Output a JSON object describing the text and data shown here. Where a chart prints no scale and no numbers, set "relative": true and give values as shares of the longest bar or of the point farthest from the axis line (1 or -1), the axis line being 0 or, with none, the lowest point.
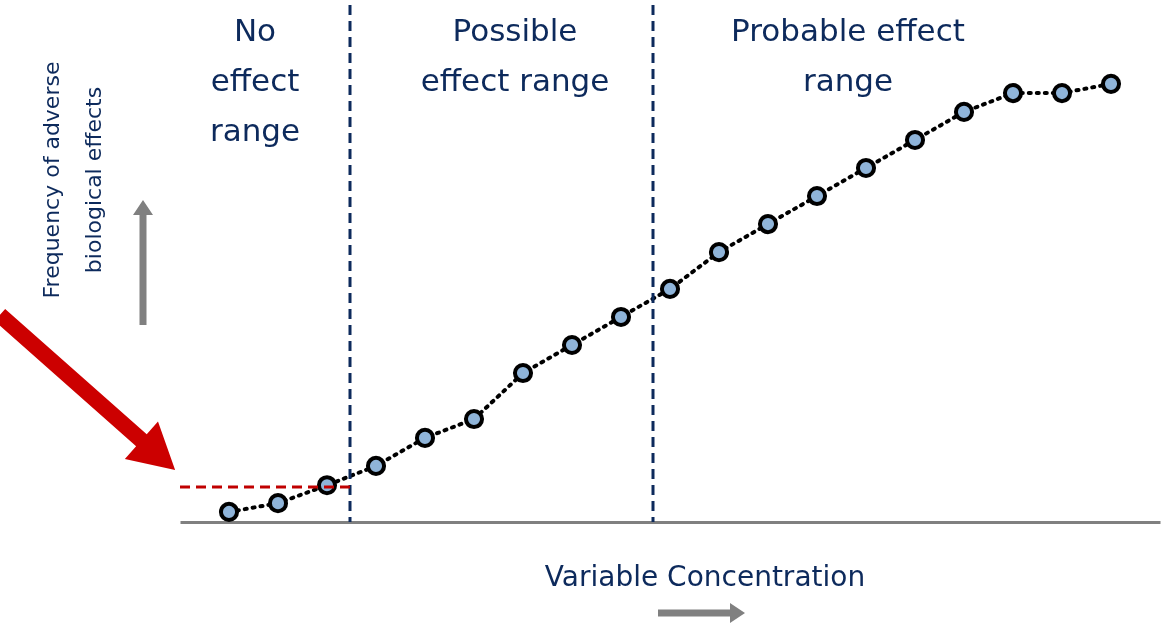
{
  "chart_data": {
    "type": "line",
    "relative": true,
    "marker": "circle",
    "line_style": "dotted",
    "xlabel": "Variable Concentration",
    "ylabel": "Frequency of adverse\nbiological effects",
    "categories": [
      null,
      null,
      null,
      null,
      null,
      null,
      null,
      null,
      null,
      null,
      null,
      null,
      null,
      null,
      null,
      null,
      null,
      null,
      null
    ],
    "annotations": [
      "No\neffect\nrange",
      "Possible\neffect range",
      "Probable effect\nrange"
    ],
    "ref_lines": [
      {
        "axis": "y",
        "value": 0.08,
        "color": "#c00000",
        "line_style": "dashed"
      }
    ],
    "series": [
      {
        "color": "#000000",
        "values": [
          0.023,
          0.043,
          0.084,
          0.128,
          0.192,
          0.235,
          0.34,
          0.404,
          0.468,
          0.532,
          0.616,
          0.68,
          0.744,
          0.808,
          0.872,
          0.936,
          0.979,
          0.979,
          1
        ]
      }
    ]
  }
}
